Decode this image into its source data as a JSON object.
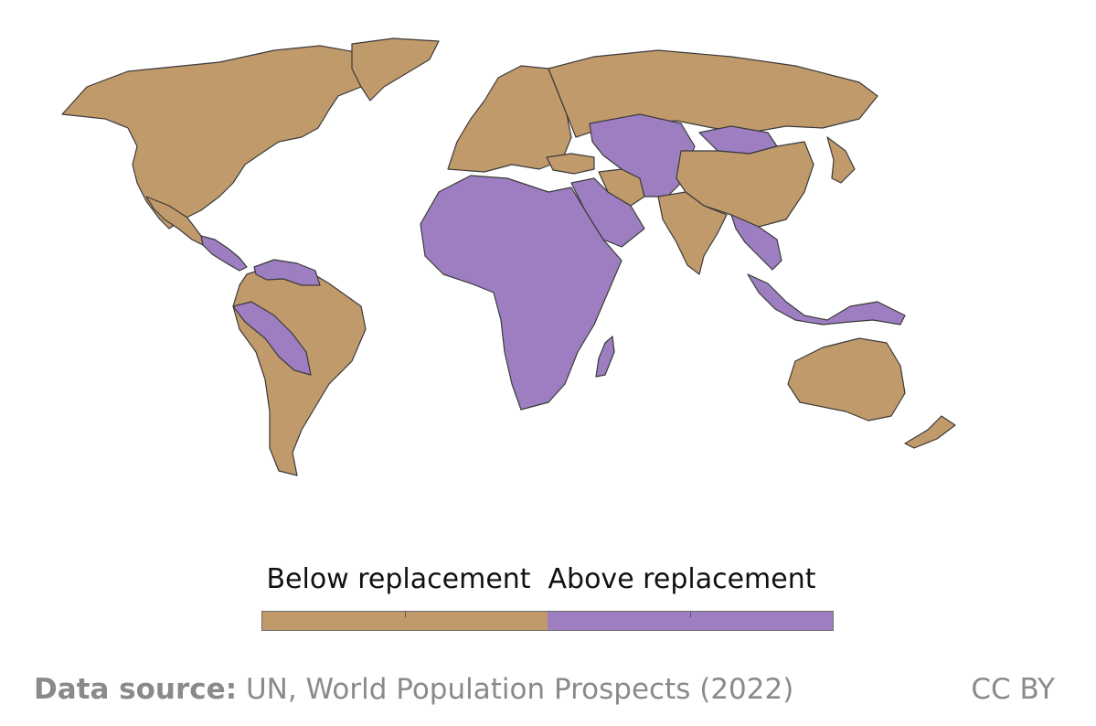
{
  "colors": {
    "below": "#c19a6b",
    "above": "#9d7fc1",
    "border": "#3a3a3a"
  },
  "legend": {
    "below_label": "Below replacement",
    "above_label": "Above replacement"
  },
  "footer": {
    "source_label": "Data source:",
    "source_text": "UN, World Population Prospects (2022)",
    "license": "CC BY"
  },
  "map_regions": [
    {
      "name": "North America",
      "category": "below"
    },
    {
      "name": "Greenland",
      "category": "below"
    },
    {
      "name": "Central America",
      "category": "above"
    },
    {
      "name": "South America",
      "category": "below"
    },
    {
      "name": "Northern South America",
      "category": "above"
    },
    {
      "name": "Andean South America",
      "category": "above"
    },
    {
      "name": "Europe",
      "category": "below"
    },
    {
      "name": "Russia",
      "category": "below"
    },
    {
      "name": "Africa",
      "category": "above"
    },
    {
      "name": "Madagascar",
      "category": "above"
    },
    {
      "name": "Middle East",
      "category": "above"
    },
    {
      "name": "Iran",
      "category": "below"
    },
    {
      "name": "Central Asia",
      "category": "above"
    },
    {
      "name": "Mongolia",
      "category": "above"
    },
    {
      "name": "China",
      "category": "below"
    },
    {
      "name": "India",
      "category": "below"
    },
    {
      "name": "Southeast Asia",
      "category": "above"
    },
    {
      "name": "Indonesia",
      "category": "above"
    },
    {
      "name": "Japan",
      "category": "below"
    },
    {
      "name": "Australia",
      "category": "below"
    },
    {
      "name": "New Zealand",
      "category": "below"
    }
  ]
}
